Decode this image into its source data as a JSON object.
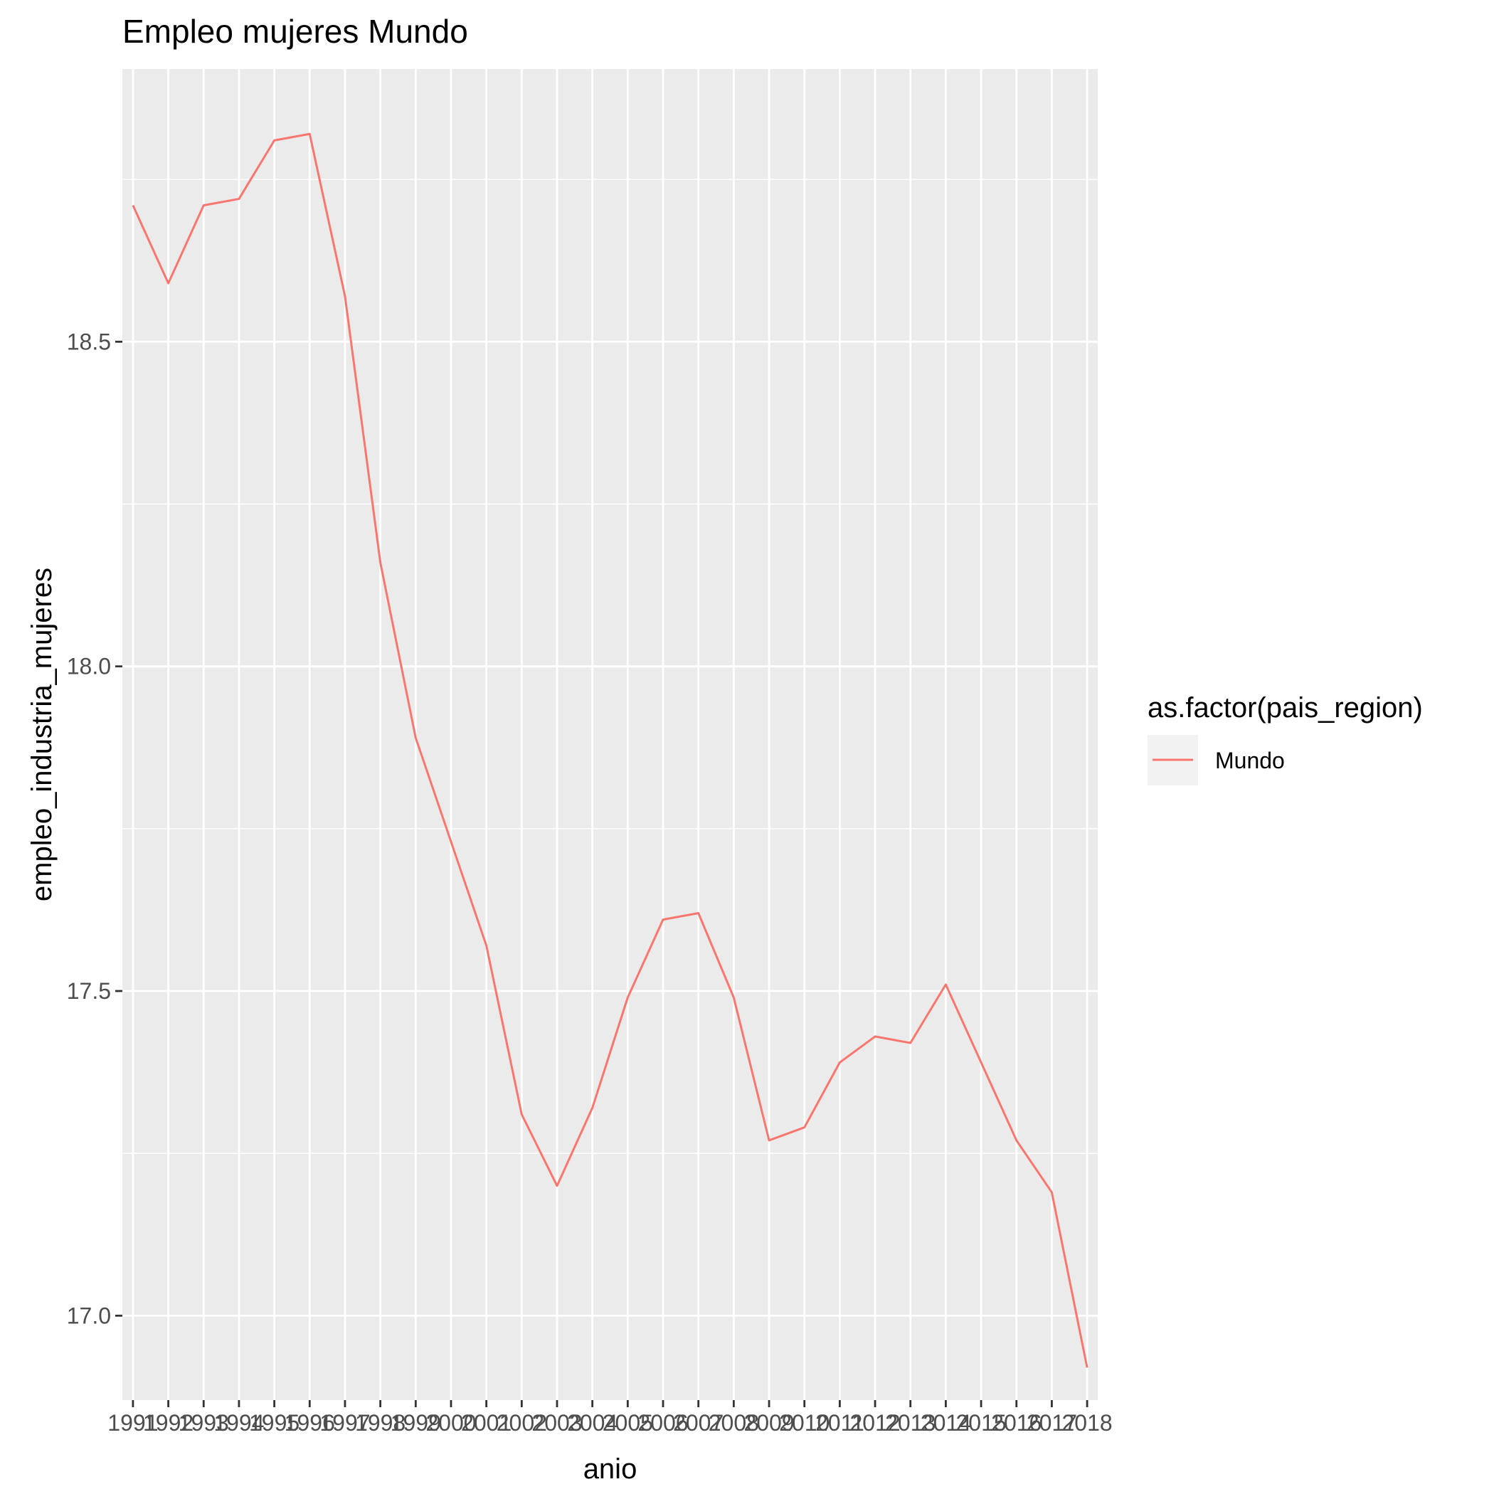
{
  "chart_data": {
    "type": "line",
    "title": "Empleo mujeres Mundo",
    "xlabel": "anio",
    "ylabel": "empleo_industria_mujeres",
    "x": [
      "1991",
      "1992",
      "1993",
      "1994",
      "1995",
      "1996",
      "1997",
      "1998",
      "1999",
      "2000",
      "2001",
      "2002",
      "2003",
      "2004",
      "2005",
      "2006",
      "2007",
      "2008",
      "2009",
      "2010",
      "2011",
      "2012",
      "2013",
      "2014",
      "2015",
      "2016",
      "2017",
      "2018"
    ],
    "y_ticks": [
      "17.0",
      "17.5",
      "18.0",
      "18.5"
    ],
    "ylim": [
      16.87,
      18.92
    ],
    "series": [
      {
        "name": "Mundo",
        "color": "#F8766D",
        "values": [
          18.71,
          18.59,
          18.71,
          18.72,
          18.81,
          18.82,
          18.57,
          18.16,
          17.89,
          17.73,
          17.57,
          17.31,
          17.2,
          17.32,
          17.49,
          17.61,
          17.62,
          17.49,
          17.27,
          17.29,
          17.39,
          17.43,
          17.42,
          17.51,
          17.39,
          17.27,
          17.19,
          16.92
        ]
      }
    ],
    "legend": {
      "title": "as.factor(pais_region)",
      "position": "right"
    },
    "grid": true,
    "panel_background": "#EBEBEB",
    "grid_color": "#FFFFFF"
  }
}
